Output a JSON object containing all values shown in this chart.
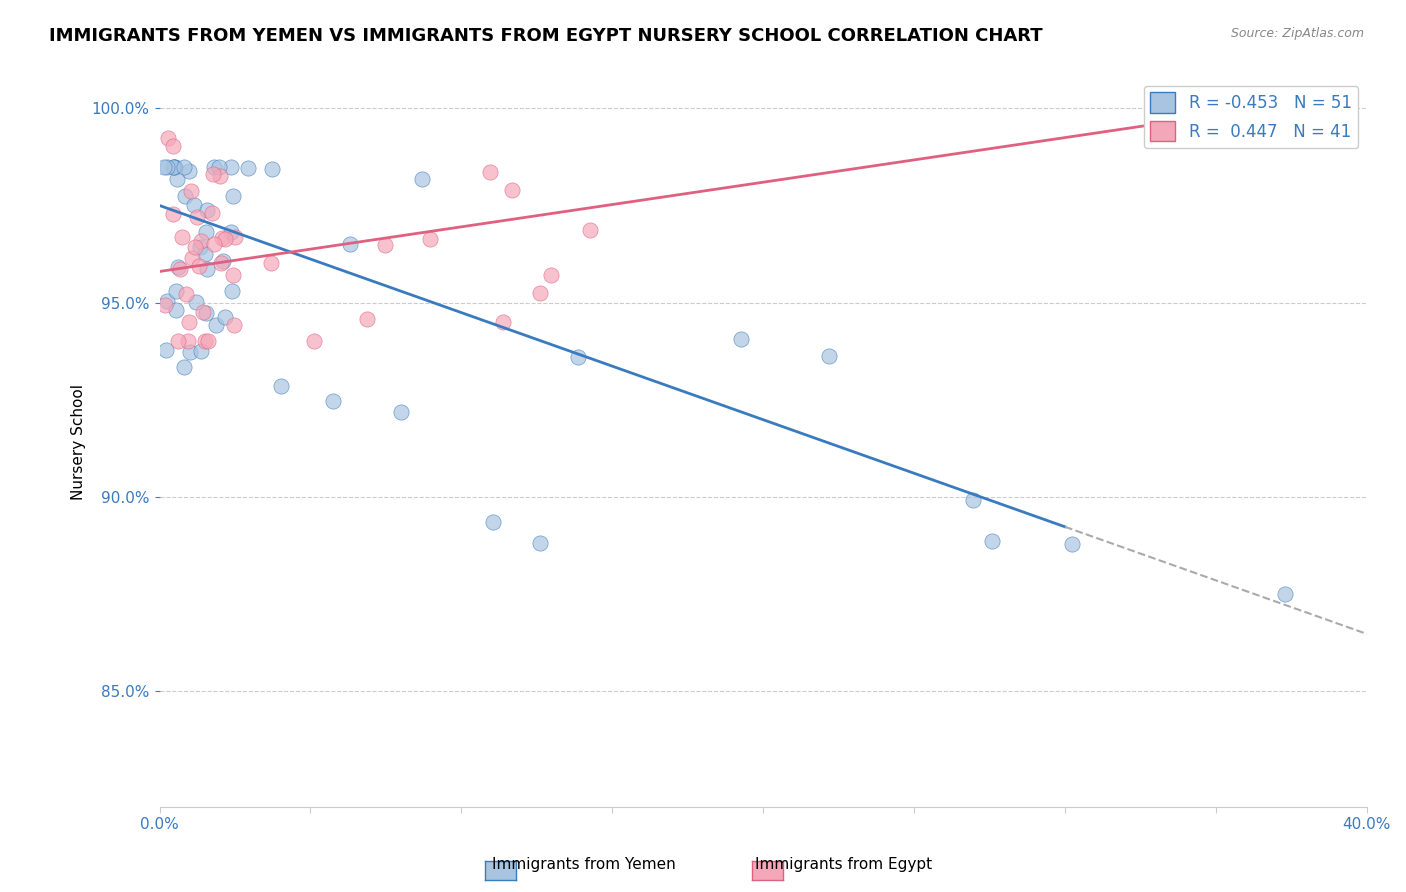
{
  "title": "IMMIGRANTS FROM YEMEN VS IMMIGRANTS FROM EGYPT NURSERY SCHOOL CORRELATION CHART",
  "source": "Source: ZipAtlas.com",
  "ylabel": "Nursery School",
  "xlim": [
    0.0,
    0.4
  ],
  "ylim": [
    0.82,
    1.008
  ],
  "yemen_R": -0.453,
  "yemen_N": 51,
  "egypt_R": 0.447,
  "egypt_N": 41,
  "yemen_color": "#a8c4e0",
  "egypt_color": "#f4a7b9",
  "yemen_line_color": "#3a7abf",
  "egypt_line_color": "#e06080",
  "background_color": "#ffffff",
  "grid_color": "#cccccc",
  "title_fontsize": 13,
  "axis_label_fontsize": 11,
  "tick_fontsize": 11,
  "legend_fontsize": 12,
  "yemen_slope": -0.276,
  "yemen_intercept": 0.975,
  "egypt_slope": 0.115,
  "egypt_intercept": 0.958
}
